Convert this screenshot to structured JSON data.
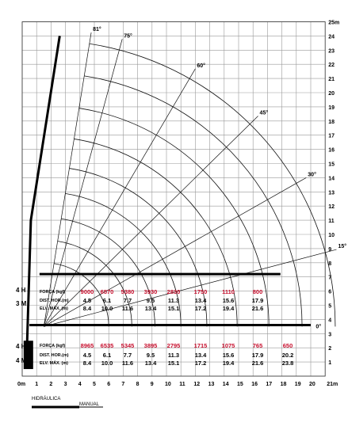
{
  "axes": {
    "x_unit_label": "21m",
    "y_unit_label": "25m",
    "x_ticks": [
      "0m",
      "1",
      "2",
      "3",
      "4",
      "5",
      "6",
      "7",
      "8",
      "9",
      "10",
      "11",
      "12",
      "13",
      "14",
      "15",
      "16",
      "17",
      "18",
      "19",
      "20"
    ],
    "y_ticks": [
      "1",
      "2",
      "3",
      "4",
      "5",
      "6",
      "7",
      "8",
      "9",
      "10",
      "11",
      "12",
      "13",
      "14",
      "15",
      "16",
      "17",
      "18",
      "19",
      "20",
      "21",
      "22",
      "23",
      "24"
    ]
  },
  "angles": [
    "81°",
    "75°",
    "60°",
    "45°",
    "30°",
    "15°",
    "0°"
  ],
  "table_top": {
    "config_a": "4 H",
    "config_b": "3 M",
    "row_labels": [
      "FORÇA (kgf)",
      "DIST. HOR.(m)",
      "ELV. MÁX. (m)"
    ],
    "force": [
      "9000",
      "6570",
      "5380",
      "3930",
      "2830",
      "1750",
      "1110",
      "800"
    ],
    "dist": [
      "4.5",
      "6.1",
      "7.7",
      "9.5",
      "11.3",
      "13.4",
      "15.6",
      "17.9"
    ],
    "elev": [
      "8.4",
      "10.0",
      "11.6",
      "13.4",
      "15.1",
      "17.2",
      "19.4",
      "21.6"
    ]
  },
  "table_bottom": {
    "config_a": "4 H",
    "config_b": "4 M",
    "row_labels": [
      "FORÇA (kgf)",
      "DIST. HOR.(m)",
      "ELV. MÁX. (m)"
    ],
    "force": [
      "8965",
      "6535",
      "5345",
      "3895",
      "2795",
      "1715",
      "1075",
      "765",
      "650"
    ],
    "dist": [
      "4.5",
      "6.1",
      "7.7",
      "9.5",
      "11.3",
      "13.4",
      "15.6",
      "17.9",
      "20.2"
    ],
    "elev": [
      "8.4",
      "10.0",
      "11.6",
      "13.4",
      "15.1",
      "17.2",
      "19.4",
      "21.6",
      "23.8"
    ]
  },
  "legend": {
    "hydraulic": "HIDRÁULICA",
    "manual": "MANUAL"
  }
}
